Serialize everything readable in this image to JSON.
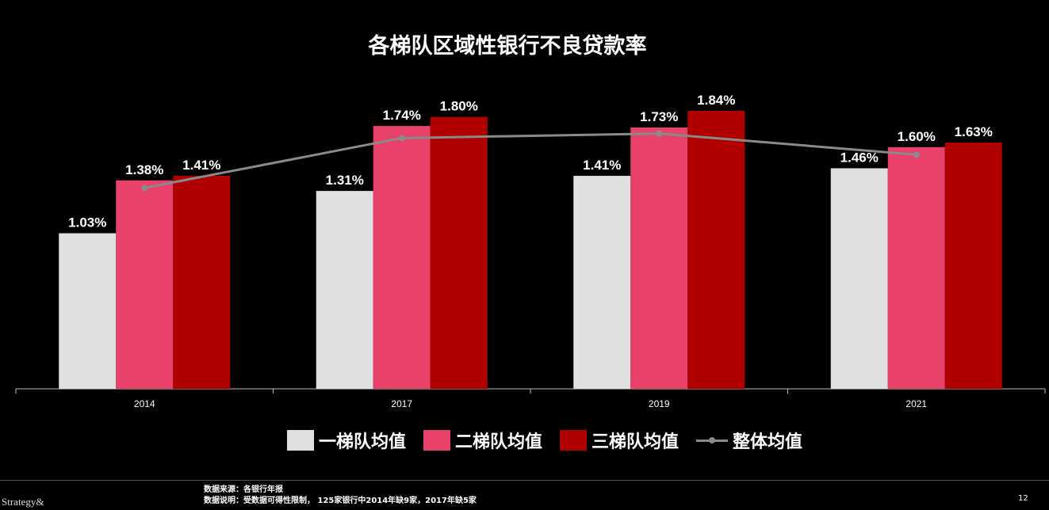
{
  "title": "各梯队区域性银行不良贷款率",
  "chart_data": {
    "type": "bar",
    "title": "各梯队区域性银行不良贷款率",
    "categories": [
      "2014",
      "2017",
      "2019",
      "2021"
    ],
    "series": [
      {
        "name": "一梯队均值",
        "kind": "bar",
        "color": "#e0e0e0",
        "values": [
          1.03,
          1.31,
          1.41,
          1.46
        ],
        "labels": [
          "1.03%",
          "1.31%",
          "1.41%",
          "1.46%"
        ]
      },
      {
        "name": "二梯队均值",
        "kind": "bar",
        "color": "#e8426a",
        "values": [
          1.38,
          1.74,
          1.73,
          1.6
        ],
        "labels": [
          "1.38%",
          "1.74%",
          "1.73%",
          "1.60%"
        ]
      },
      {
        "name": "三梯队均值",
        "kind": "bar",
        "color": "#b00000",
        "values": [
          1.41,
          1.8,
          1.84,
          1.63
        ],
        "labels": [
          "1.41%",
          "1.80%",
          "1.84%",
          "1.63%"
        ]
      },
      {
        "name": "整体均值",
        "kind": "line",
        "color": "#8a8a8a",
        "values": [
          1.33,
          1.66,
          1.69,
          1.55
        ]
      }
    ],
    "ylim": [
      0,
      2.0
    ],
    "grid": false,
    "legend_position": "bottom"
  },
  "footer": {
    "logo": "Strategy&",
    "source_line1": "数据来源：各银行年报",
    "source_line2": "数据说明：受数据可得性限制， 125家银行中2014年缺9家，2017年缺5家",
    "page_number": "12"
  }
}
